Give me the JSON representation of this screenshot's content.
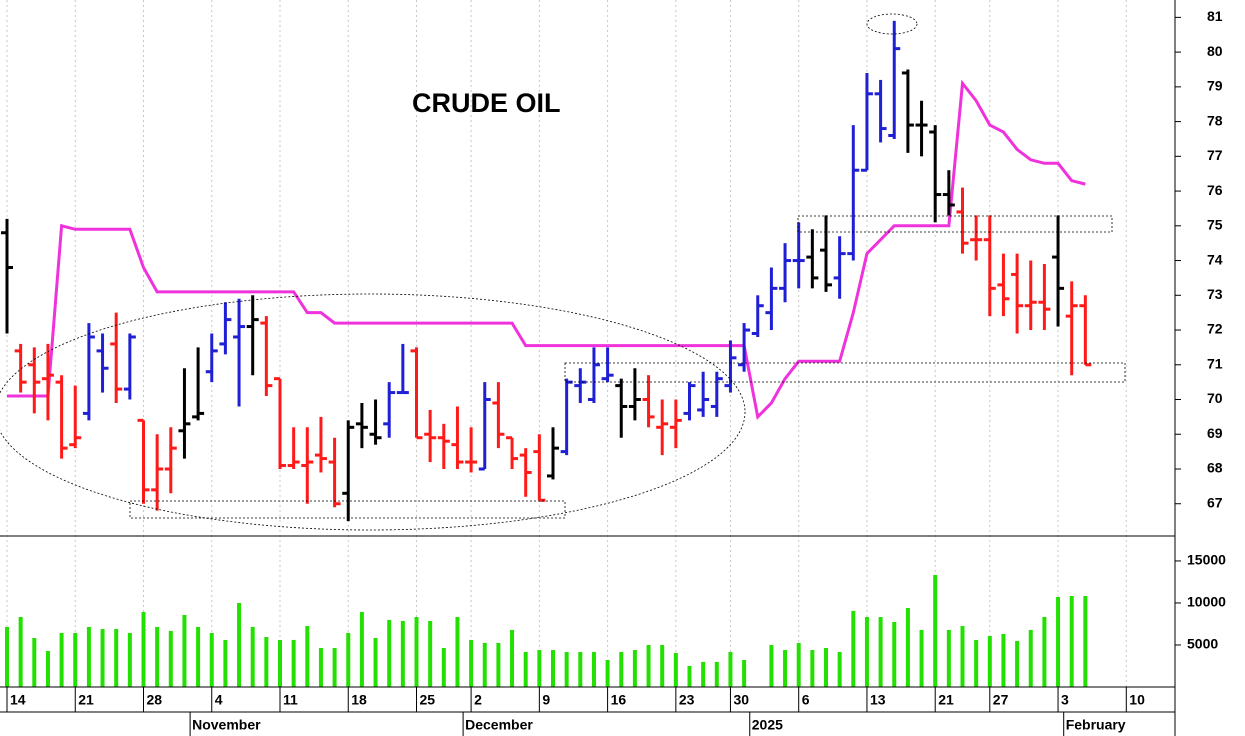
{
  "chart_data": {
    "type": "ohlc",
    "title": "CRUDE OIL",
    "categories": [
      "14",
      null,
      null,
      null,
      null,
      "21",
      null,
      null,
      null,
      null,
      "28",
      null,
      null,
      null,
      null,
      "4",
      null,
      null,
      null,
      null,
      "11",
      null,
      null,
      null,
      null,
      "18",
      null,
      null,
      null,
      null,
      "25",
      null,
      null,
      null,
      "2",
      null,
      null,
      null,
      null,
      "9",
      null,
      null,
      null,
      null,
      "16",
      null,
      null,
      null,
      null,
      "23",
      null,
      null,
      null,
      "30",
      null,
      null,
      null,
      null,
      "6",
      null,
      null,
      null,
      null,
      "13",
      null,
      null,
      null,
      null,
      "21",
      null,
      null,
      null,
      "27",
      null,
      null,
      null,
      null,
      "3",
      null,
      null,
      null,
      null,
      "10"
    ],
    "month_labels": [
      null,
      null,
      null,
      null,
      null,
      null,
      null,
      null,
      null,
      null,
      null,
      null,
      null,
      null,
      "November",
      null,
      null,
      null,
      null,
      null,
      null,
      null,
      null,
      null,
      null,
      null,
      null,
      null,
      null,
      null,
      null,
      null,
      null,
      null,
      "December",
      null,
      null,
      null,
      null,
      null,
      null,
      null,
      null,
      null,
      null,
      null,
      null,
      null,
      null,
      null,
      null,
      null,
      null,
      null,
      null,
      "2025",
      null,
      null,
      null,
      null,
      null,
      null,
      null,
      null,
      null,
      null,
      null,
      null,
      null,
      null,
      null,
      null,
      null,
      null,
      null,
      null,
      null,
      null,
      "February",
      null,
      null,
      null,
      null
    ],
    "open": [
      74.8,
      71.4,
      71.0,
      70.6,
      70.5,
      68.7,
      69.6,
      71.4,
      71.6,
      70.3,
      69.4,
      67.4,
      68.0,
      69.1,
      69.5,
      70.8,
      71.6,
      71.8,
      72.1,
      72.2,
      70.6,
      68.1,
      68.1,
      68.4,
      68.2,
      67.3,
      69.3,
      69.0,
      69.3,
      70.2,
      71.4,
      69.0,
      68.9,
      68.7,
      68.2,
      68.0,
      69.9,
      68.9,
      68.4,
      68.5,
      67.8,
      68.5,
      70.4,
      70.0,
      70.6,
      70.4,
      69.8,
      70.0,
      69.2,
      69.2,
      69.6,
      69.7,
      69.8,
      70.4,
      71.0,
      71.9,
      72.5,
      73.2,
      74.0,
      74.1,
      74.3,
      73.5,
      74.2,
      76.6,
      78.8,
      77.6,
      79.4,
      77.9,
      77.7,
      75.9,
      75.4,
      74.6,
      74.6,
      73.3,
      73.6,
      72.7,
      72.8,
      74.1,
      72.4,
      72.7,
      null,
      null,
      null
    ],
    "high": [
      75.2,
      71.6,
      71.5,
      71.6,
      70.7,
      70.4,
      72.2,
      71.9,
      72.5,
      71.9,
      69.4,
      69.0,
      69.2,
      70.9,
      71.5,
      71.9,
      72.8,
      72.9,
      73.0,
      72.4,
      70.6,
      69.2,
      69.2,
      69.5,
      68.9,
      69.4,
      69.9,
      70.0,
      70.5,
      71.6,
      71.5,
      69.7,
      69.3,
      69.8,
      69.2,
      70.5,
      70.5,
      68.9,
      68.6,
      69.0,
      69.2,
      70.6,
      70.9,
      71.5,
      71.5,
      70.6,
      70.9,
      70.7,
      70.0,
      70.0,
      70.5,
      70.8,
      70.8,
      71.7,
      72.2,
      73.0,
      73.8,
      74.5,
      75.1,
      74.9,
      75.3,
      74.7,
      77.9,
      79.4,
      79.2,
      80.9,
      79.5,
      78.6,
      77.9,
      76.6,
      76.1,
      75.3,
      75.3,
      74.2,
      74.2,
      74.0,
      73.9,
      75.3,
      73.4,
      73.0,
      null,
      null,
      null
    ],
    "low": [
      71.9,
      70.2,
      69.6,
      69.4,
      68.3,
      68.6,
      69.4,
      70.2,
      69.9,
      70.0,
      67.0,
      66.8,
      67.3,
      68.3,
      69.4,
      70.5,
      71.3,
      69.8,
      70.7,
      70.1,
      68.0,
      68.0,
      67.0,
      67.9,
      66.9,
      66.5,
      68.6,
      68.7,
      68.9,
      70.2,
      68.9,
      68.2,
      68.0,
      68.0,
      67.9,
      68.0,
      68.6,
      68.0,
      67.2,
      67.1,
      67.7,
      68.4,
      69.9,
      69.9,
      70.5,
      68.9,
      69.4,
      69.2,
      68.4,
      68.6,
      69.4,
      69.5,
      69.5,
      70.2,
      70.8,
      71.8,
      72.0,
      72.8,
      73.2,
      73.2,
      73.1,
      72.9,
      74.0,
      76.6,
      77.4,
      77.5,
      77.1,
      77.0,
      75.1,
      75.3,
      74.2,
      74.0,
      72.4,
      72.4,
      71.9,
      72.0,
      72.0,
      72.1,
      70.7,
      71.0,
      null,
      null,
      null
    ],
    "close": [
      73.8,
      70.5,
      70.5,
      70.7,
      68.6,
      68.9,
      71.8,
      70.9,
      70.3,
      71.8,
      67.4,
      68.0,
      68.6,
      69.3,
      69.6,
      71.4,
      72.3,
      72.1,
      72.3,
      70.4,
      68.1,
      68.2,
      68.2,
      68.3,
      67.0,
      69.2,
      69.2,
      68.9,
      70.2,
      70.2,
      68.9,
      68.9,
      68.8,
      68.2,
      68.2,
      70.0,
      69.0,
      68.3,
      67.9,
      67.1,
      68.6,
      70.5,
      70.5,
      71.0,
      70.7,
      69.8,
      70.0,
      69.5,
      69.3,
      69.4,
      70.4,
      70.0,
      70.6,
      71.2,
      72.0,
      72.7,
      73.2,
      74.0,
      74.0,
      73.5,
      73.3,
      74.2,
      76.6,
      78.8,
      77.8,
      80.1,
      77.9,
      77.9,
      75.9,
      75.6,
      74.5,
      74.6,
      73.2,
      72.9,
      72.7,
      72.8,
      72.6,
      73.2,
      72.7,
      71.0,
      null,
      null,
      null
    ],
    "bar_colors": [
      "#000000",
      "#ff1a1a",
      "#ff1a1a",
      "#ff1a1a",
      "#ff1a1a",
      "#ff1a1a",
      "#1f1fd6",
      "#1f1fd6",
      "#ff1a1a",
      "#1f1fd6",
      "#ff1a1a",
      "#ff1a1a",
      "#ff1a1a",
      "#000000",
      "#000000",
      "#1f1fd6",
      "#1f1fd6",
      "#1f1fd6",
      "#000000",
      "#ff1a1a",
      "#ff1a1a",
      "#ff1a1a",
      "#ff1a1a",
      "#ff1a1a",
      "#ff1a1a",
      "#000000",
      "#000000",
      "#000000",
      "#1f1fd6",
      "#1f1fd6",
      "#ff1a1a",
      "#ff1a1a",
      "#ff1a1a",
      "#ff1a1a",
      "#ff1a1a",
      "#1f1fd6",
      "#ff1a1a",
      "#ff1a1a",
      "#ff1a1a",
      "#ff1a1a",
      "#000000",
      "#1f1fd6",
      "#1f1fd6",
      "#1f1fd6",
      "#1f1fd6",
      "#000000",
      "#000000",
      "#ff1a1a",
      "#ff1a1a",
      "#ff1a1a",
      "#1f1fd6",
      "#1f1fd6",
      "#1f1fd6",
      "#1f1fd6",
      "#1f1fd6",
      "#1f1fd6",
      "#1f1fd6",
      "#1f1fd6",
      "#1f1fd6",
      "#000000",
      "#000000",
      "#1f1fd6",
      "#1f1fd6",
      "#1f1fd6",
      "#1f1fd6",
      "#1f1fd6",
      "#000000",
      "#000000",
      "#000000",
      "#000000",
      "#ff1a1a",
      "#ff1a1a",
      "#ff1a1a",
      "#ff1a1a",
      "#ff1a1a",
      "#ff1a1a",
      "#ff1a1a",
      "#000000",
      "#ff1a1a",
      "#ff1a1a",
      null,
      null,
      null
    ],
    "stop_line": {
      "color": "#f032dc",
      "values": [
        70.1,
        70.1,
        70.1,
        70.1,
        75.0,
        74.9,
        74.9,
        74.9,
        74.9,
        74.9,
        73.8,
        73.1,
        73.1,
        73.1,
        73.1,
        73.1,
        73.1,
        73.1,
        73.1,
        73.1,
        73.1,
        73.1,
        72.5,
        72.5,
        72.2,
        72.2,
        72.2,
        72.2,
        72.2,
        72.2,
        72.2,
        72.2,
        72.2,
        72.2,
        72.2,
        72.2,
        72.2,
        72.2,
        71.55,
        71.55,
        71.55,
        71.55,
        71.55,
        71.55,
        71.55,
        71.55,
        71.55,
        71.55,
        71.55,
        71.55,
        71.55,
        71.55,
        71.55,
        71.55,
        71.55,
        69.5,
        69.9,
        70.6,
        71.1,
        71.1,
        71.1,
        71.1,
        72.5,
        74.2,
        74.6,
        75.0,
        75.0,
        75.0,
        75.0,
        75.0,
        79.1,
        78.6,
        77.9,
        77.7,
        77.2,
        76.9,
        76.8,
        76.8,
        76.3,
        76.2,
        null,
        null,
        null
      ]
    },
    "ylim": [
      66.1,
      81.5
    ],
    "yticks": [
      67,
      68,
      69,
      70,
      71,
      72,
      73,
      74,
      75,
      76,
      77,
      78,
      79,
      80,
      81
    ],
    "volume": {
      "color": "#22e000",
      "ylim": [
        0,
        17850
      ],
      "yticks": [
        5000,
        10000,
        15000
      ],
      "values": [
        7140,
        8330,
        5830,
        4290,
        6430,
        6430,
        7140,
        6900,
        6900,
        6430,
        8930,
        7140,
        6670,
        8570,
        7140,
        6430,
        5600,
        10000,
        7140,
        5950,
        5600,
        5600,
        7260,
        4640,
        4640,
        6430,
        8930,
        5830,
        7980,
        7860,
        8330,
        7860,
        4640,
        8330,
        5600,
        5240,
        5240,
        6790,
        4170,
        4400,
        4400,
        4170,
        4170,
        4170,
        3210,
        4170,
        4400,
        5000,
        5000,
        4050,
        2500,
        2980,
        2980,
        4170,
        3210,
        null,
        5000,
        4400,
        5240,
        4400,
        4640,
        4170,
        9050,
        8330,
        8330,
        7740,
        9400,
        6790,
        13330,
        6790,
        7260,
        5600,
        6070,
        6310,
        5480,
        6790,
        8330,
        10710,
        10830,
        10830,
        null,
        null,
        null
      ]
    },
    "grid": true
  }
}
